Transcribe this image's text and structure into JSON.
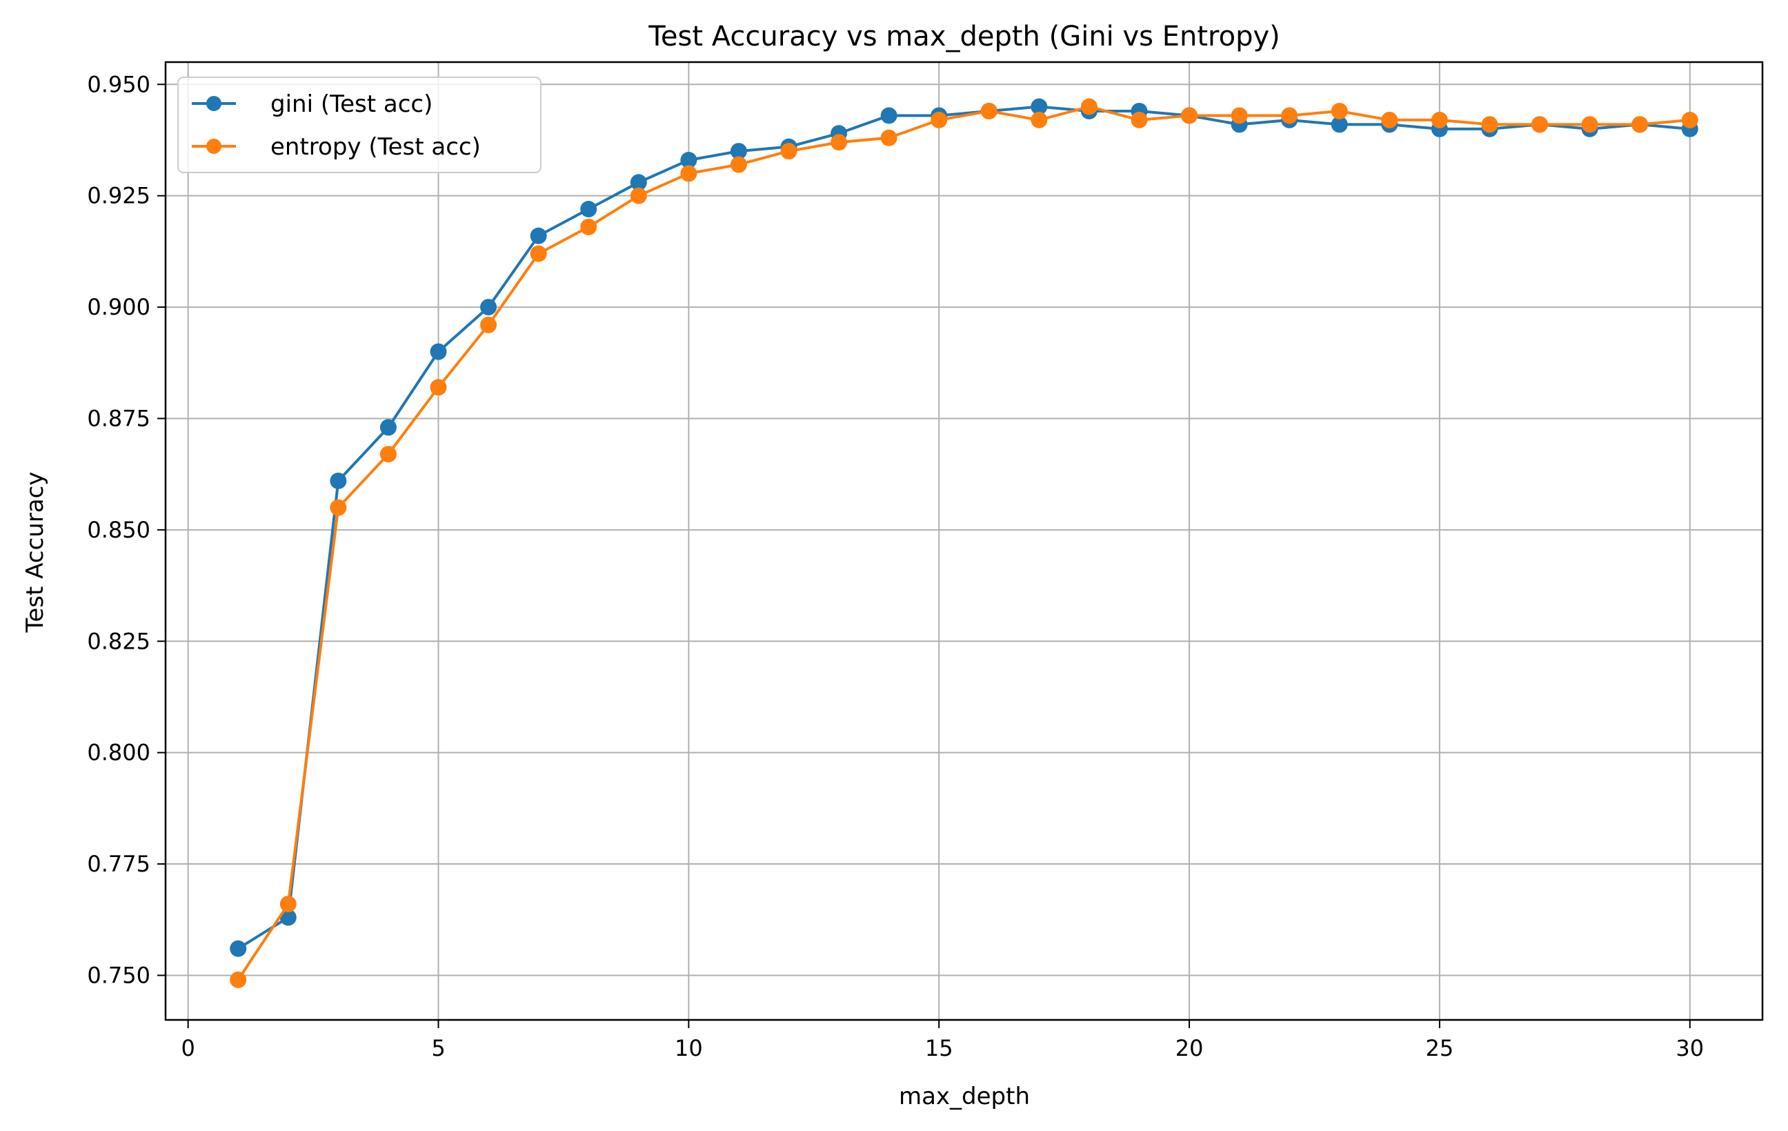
{
  "chart_data": {
    "type": "line",
    "title": "Test Accuracy vs max_depth (Gini vs Entropy)",
    "xlabel": "max_depth",
    "ylabel": "Test Accuracy",
    "xlim": [
      -0.45,
      31.45
    ],
    "ylim": [
      0.74,
      0.955
    ],
    "xticks": [
      0,
      5,
      10,
      15,
      20,
      25,
      30
    ],
    "xtick_labels": [
      "0",
      "5",
      "10",
      "15",
      "20",
      "25",
      "30"
    ],
    "yticks": [
      0.75,
      0.775,
      0.8,
      0.825,
      0.85,
      0.875,
      0.9,
      0.925,
      0.95
    ],
    "ytick_labels": [
      "0.750",
      "0.775",
      "0.800",
      "0.825",
      "0.850",
      "0.875",
      "0.900",
      "0.925",
      "0.950"
    ],
    "grid": true,
    "legend_position": "top-left",
    "x": [
      1,
      2,
      3,
      4,
      5,
      6,
      7,
      8,
      9,
      10,
      11,
      12,
      13,
      14,
      15,
      16,
      17,
      18,
      19,
      20,
      21,
      22,
      23,
      24,
      25,
      26,
      27,
      28,
      29,
      30
    ],
    "series": [
      {
        "name": "gini (Test acc)",
        "color": "#1f77b4",
        "marker": "circle",
        "values": [
          0.756,
          0.763,
          0.861,
          0.873,
          0.89,
          0.9,
          0.916,
          0.922,
          0.928,
          0.933,
          0.935,
          0.936,
          0.939,
          0.943,
          0.943,
          0.944,
          0.945,
          0.944,
          0.944,
          0.943,
          0.941,
          0.942,
          0.941,
          0.941,
          0.94,
          0.94,
          0.941,
          0.94,
          0.941,
          0.94
        ]
      },
      {
        "name": "entropy (Test acc)",
        "color": "#ff7f0e",
        "marker": "circle",
        "values": [
          0.749,
          0.766,
          0.855,
          0.867,
          0.882,
          0.896,
          0.912,
          0.918,
          0.925,
          0.93,
          0.932,
          0.935,
          0.937,
          0.938,
          0.942,
          0.944,
          0.942,
          0.945,
          0.942,
          0.943,
          0.943,
          0.943,
          0.944,
          0.942,
          0.942,
          0.941,
          0.941,
          0.941,
          0.941,
          0.942
        ]
      }
    ]
  }
}
